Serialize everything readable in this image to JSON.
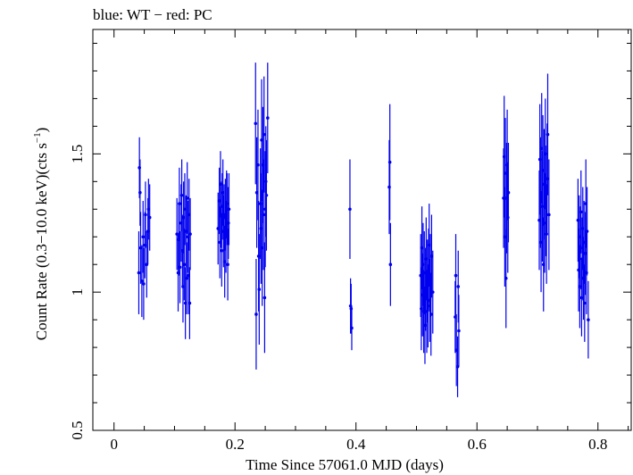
{
  "chart_data": {
    "type": "scatter",
    "title": "blue: WT − red: PC",
    "xlabel": "Time Since 57061.0 MJD (days)",
    "ylabel_parts": [
      "Count Rate (0.3−10.0 keV)(cts s",
      "−1",
      ")"
    ],
    "xlim": [
      -0.035,
      0.855
    ],
    "ylim": [
      0.5,
      1.95
    ],
    "x_ticks": [
      0,
      0.2,
      0.4,
      0.6,
      0.8
    ],
    "x_tick_labels": [
      "0",
      "0.2",
      "0.4",
      "0.6",
      "0.8"
    ],
    "y_ticks": [
      0.5,
      1,
      1.5
    ],
    "y_tick_labels": [
      "0.5",
      "1",
      "1.5"
    ],
    "grid": false,
    "colors": {
      "WT": "#0000ee",
      "PC": "#ff0000"
    },
    "series": [
      {
        "name": "WT",
        "points": [
          [
            0.041,
            1.07,
            0.15
          ],
          [
            0.042,
            1.45,
            0.11
          ],
          [
            0.043,
            1.36,
            0.12
          ],
          [
            0.044,
            1.16,
            0.13
          ],
          [
            0.046,
            1.04,
            0.13
          ],
          [
            0.048,
            1.2,
            0.13
          ],
          [
            0.049,
            1.03,
            0.13
          ],
          [
            0.051,
            1.17,
            0.12
          ],
          [
            0.052,
            1.28,
            0.12
          ],
          [
            0.054,
            1.1,
            0.12
          ],
          [
            0.056,
            1.22,
            0.12
          ],
          [
            0.057,
            1.3,
            0.11
          ],
          [
            0.059,
            1.27,
            0.12
          ],
          [
            0.104,
            1.21,
            0.13
          ],
          [
            0.106,
            1.07,
            0.14
          ],
          [
            0.107,
            1.19,
            0.13
          ],
          [
            0.108,
            1.32,
            0.13
          ],
          [
            0.109,
            1.09,
            0.13
          ],
          [
            0.111,
            1.25,
            0.14
          ],
          [
            0.112,
            1.35,
            0.13
          ],
          [
            0.113,
            1.15,
            0.13
          ],
          [
            0.114,
            1.02,
            0.13
          ],
          [
            0.115,
            1.27,
            0.13
          ],
          [
            0.116,
            1.1,
            0.13
          ],
          [
            0.117,
            1.3,
            0.13
          ],
          [
            0.118,
            0.96,
            0.13
          ],
          [
            0.119,
            1.22,
            0.13
          ],
          [
            0.12,
            1.05,
            0.13
          ],
          [
            0.121,
            1.34,
            0.13
          ],
          [
            0.122,
            1.2,
            0.13
          ],
          [
            0.123,
            1.06,
            0.14
          ],
          [
            0.124,
            1.28,
            0.13
          ],
          [
            0.125,
            0.96,
            0.13
          ],
          [
            0.126,
            1.21,
            0.13
          ],
          [
            0.172,
            1.23,
            0.13
          ],
          [
            0.174,
            1.33,
            0.12
          ],
          [
            0.175,
            1.18,
            0.13
          ],
          [
            0.176,
            1.39,
            0.12
          ],
          [
            0.177,
            1.28,
            0.12
          ],
          [
            0.178,
            1.15,
            0.13
          ],
          [
            0.179,
            1.31,
            0.12
          ],
          [
            0.18,
            1.36,
            0.12
          ],
          [
            0.181,
            1.22,
            0.13
          ],
          [
            0.182,
            1.27,
            0.12
          ],
          [
            0.183,
            1.11,
            0.13
          ],
          [
            0.184,
            1.28,
            0.13
          ],
          [
            0.185,
            1.2,
            0.13
          ],
          [
            0.186,
            1.32,
            0.12
          ],
          [
            0.187,
            1.3,
            0.13
          ],
          [
            0.188,
            1.1,
            0.13
          ],
          [
            0.189,
            1.25,
            0.13
          ],
          [
            0.19,
            1.3,
            0.13
          ],
          [
            0.234,
            1.61,
            0.22
          ],
          [
            0.235,
            0.92,
            0.2
          ],
          [
            0.236,
            1.36,
            0.2
          ],
          [
            0.238,
            1.46,
            0.2
          ],
          [
            0.239,
            1.13,
            0.2
          ],
          [
            0.24,
            1.01,
            0.2
          ],
          [
            0.242,
            1.32,
            0.2
          ],
          [
            0.243,
            1.23,
            0.2
          ],
          [
            0.244,
            1.55,
            0.22
          ],
          [
            0.245,
            1.16,
            0.21
          ],
          [
            0.246,
            1.46,
            0.21
          ],
          [
            0.247,
            1.28,
            0.2
          ],
          [
            0.248,
            1.57,
            0.21
          ],
          [
            0.249,
            0.98,
            0.2
          ],
          [
            0.25,
            1.3,
            0.21
          ],
          [
            0.251,
            1.4,
            0.2
          ],
          [
            0.252,
            1.35,
            0.2
          ],
          [
            0.254,
            1.63,
            0.2
          ],
          [
            0.39,
            1.3,
            0.18
          ],
          [
            0.391,
            0.95,
            0.1
          ],
          [
            0.392,
            0.94,
            0.09
          ],
          [
            0.393,
            0.87,
            0.08
          ],
          [
            0.455,
            1.38,
            0.17
          ],
          [
            0.456,
            1.47,
            0.21
          ],
          [
            0.457,
            1.1,
            0.15
          ],
          [
            0.507,
            1.06,
            0.15
          ],
          [
            0.508,
            0.94,
            0.15
          ],
          [
            0.509,
            1.16,
            0.15
          ],
          [
            0.51,
            0.99,
            0.15
          ],
          [
            0.511,
            1.1,
            0.15
          ],
          [
            0.512,
            0.93,
            0.15
          ],
          [
            0.513,
            1.07,
            0.15
          ],
          [
            0.514,
            0.88,
            0.14
          ],
          [
            0.515,
            1.01,
            0.15
          ],
          [
            0.516,
            1.12,
            0.15
          ],
          [
            0.517,
            0.93,
            0.15
          ],
          [
            0.518,
            1.04,
            0.15
          ],
          [
            0.519,
            0.95,
            0.15
          ],
          [
            0.52,
            1.08,
            0.15
          ],
          [
            0.521,
            1.17,
            0.15
          ],
          [
            0.522,
            0.97,
            0.15
          ],
          [
            0.523,
            1.06,
            0.15
          ],
          [
            0.524,
            0.92,
            0.15
          ],
          [
            0.525,
            1.13,
            0.15
          ],
          [
            0.527,
            1.0,
            0.15
          ],
          [
            0.564,
            0.91,
            0.13
          ],
          [
            0.565,
            1.06,
            0.15
          ],
          [
            0.566,
            0.79,
            0.13
          ],
          [
            0.568,
            0.73,
            0.11
          ],
          [
            0.569,
            1.02,
            0.13
          ],
          [
            0.57,
            0.86,
            0.13
          ],
          [
            0.644,
            1.34,
            0.18
          ],
          [
            0.645,
            1.49,
            0.22
          ],
          [
            0.646,
            1.2,
            0.18
          ],
          [
            0.647,
            1.43,
            0.2
          ],
          [
            0.648,
            1.05,
            0.18
          ],
          [
            0.649,
            1.34,
            0.2
          ],
          [
            0.65,
            1.46,
            0.2
          ],
          [
            0.651,
            1.27,
            0.2
          ],
          [
            0.652,
            1.36,
            0.18
          ],
          [
            0.703,
            1.26,
            0.18
          ],
          [
            0.704,
            1.48,
            0.2
          ],
          [
            0.705,
            1.36,
            0.2
          ],
          [
            0.706,
            1.18,
            0.18
          ],
          [
            0.707,
            1.52,
            0.2
          ],
          [
            0.708,
            1.31,
            0.2
          ],
          [
            0.709,
            1.44,
            0.2
          ],
          [
            0.71,
            1.1,
            0.17
          ],
          [
            0.711,
            1.39,
            0.2
          ],
          [
            0.712,
            1.25,
            0.18
          ],
          [
            0.713,
            1.5,
            0.2
          ],
          [
            0.714,
            1.33,
            0.2
          ],
          [
            0.715,
            1.21,
            0.18
          ],
          [
            0.716,
            1.41,
            0.2
          ],
          [
            0.717,
            1.57,
            0.22
          ],
          [
            0.719,
            1.28,
            0.2
          ],
          [
            0.767,
            1.26,
            0.15
          ],
          [
            0.768,
            1.08,
            0.15
          ],
          [
            0.769,
            1.2,
            0.15
          ],
          [
            0.77,
            1.02,
            0.15
          ],
          [
            0.771,
            1.16,
            0.15
          ],
          [
            0.772,
            1.29,
            0.15
          ],
          [
            0.773,
            0.98,
            0.14
          ],
          [
            0.774,
            1.12,
            0.15
          ],
          [
            0.775,
            1.23,
            0.15
          ],
          [
            0.776,
            1.05,
            0.15
          ],
          [
            0.777,
            1.18,
            0.15
          ],
          [
            0.778,
            0.96,
            0.14
          ],
          [
            0.779,
            1.14,
            0.15
          ],
          [
            0.78,
            1.32,
            0.16
          ],
          [
            0.781,
            1.07,
            0.15
          ],
          [
            0.782,
            1.22,
            0.16
          ],
          [
            0.784,
            0.9,
            0.14
          ]
        ]
      }
    ]
  }
}
